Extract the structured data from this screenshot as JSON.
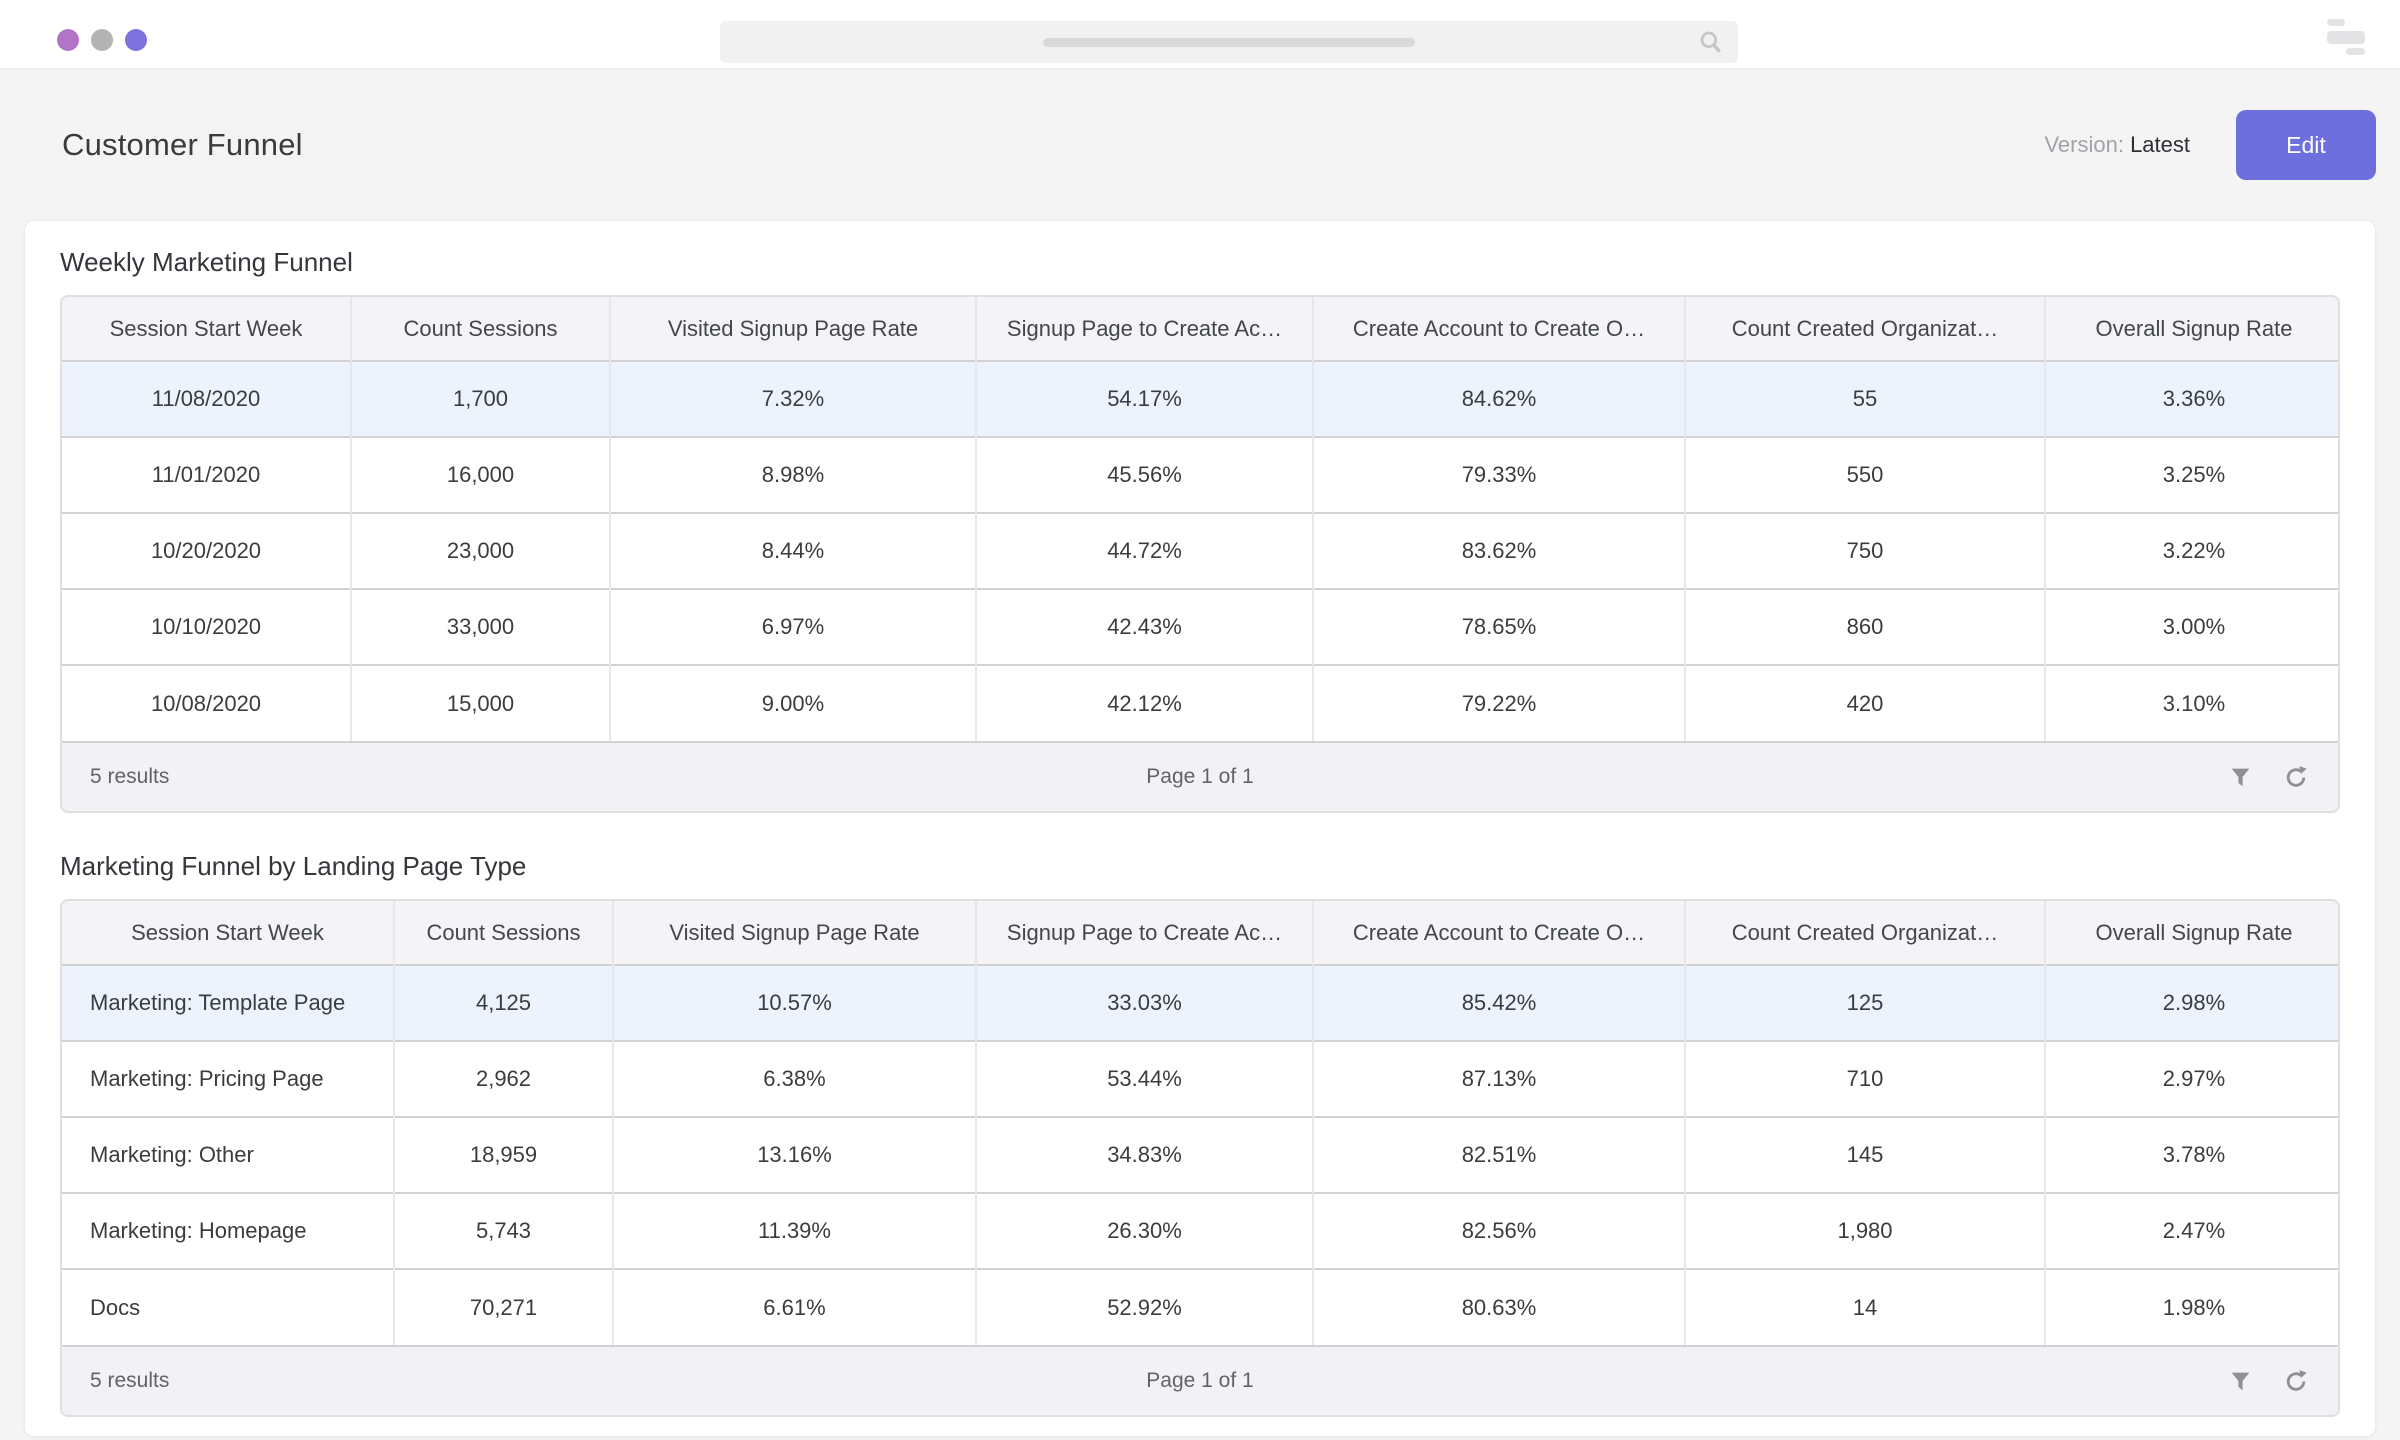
{
  "window": {
    "traffic_lights": [
      {
        "name": "dot-1",
        "color": "#b274c6"
      },
      {
        "name": "dot-2",
        "color": "#b3b3b3"
      },
      {
        "name": "dot-3",
        "color": "#7b72e0"
      }
    ],
    "search": {
      "value": "",
      "placeholder": ""
    }
  },
  "header": {
    "title": "Customer Funnel",
    "version_label": "Version:",
    "version_value": "Latest",
    "edit_label": "Edit"
  },
  "tables": [
    {
      "title": "Weekly Marketing Funnel",
      "columns": [
        "Session Start Week",
        "Count Sessions",
        "Visited Signup Page Rate",
        "Signup Page to Create Ac…",
        "Create Account to Create O…",
        "Count Created Organizat…",
        "Overall Signup Rate"
      ],
      "rows": [
        [
          "11/08/2020",
          "1,700",
          "7.32%",
          "54.17%",
          "84.62%",
          "55",
          "3.36%"
        ],
        [
          "11/01/2020",
          "16,000",
          "8.98%",
          "45.56%",
          "79.33%",
          "550",
          "3.25%"
        ],
        [
          "10/20/2020",
          "23,000",
          "8.44%",
          "44.72%",
          "83.62%",
          "750",
          "3.22%"
        ],
        [
          "10/10/2020",
          "33,000",
          "6.97%",
          "42.43%",
          "78.65%",
          "860",
          "3.00%"
        ],
        [
          "10/08/2020",
          "15,000",
          "9.00%",
          "42.12%",
          "79.22%",
          "420",
          "3.10%"
        ]
      ],
      "footer": {
        "results": "5 results",
        "page_status": "Page 1 of 1"
      }
    },
    {
      "title": "Marketing Funnel by Landing Page Type",
      "columns": [
        "Session Start Week",
        "Count Sessions",
        "Visited Signup Page Rate",
        "Signup Page to Create Ac…",
        "Create Account to Create O…",
        "Count Created Organizat…",
        "Overall Signup Rate"
      ],
      "rows": [
        [
          "Marketing: Template Page",
          "4,125",
          "10.57%",
          "33.03%",
          "85.42%",
          "125",
          "2.98%"
        ],
        [
          "Marketing: Pricing Page",
          "2,962",
          "6.38%",
          "53.44%",
          "87.13%",
          "710",
          "2.97%"
        ],
        [
          "Marketing: Other",
          "18,959",
          "13.16%",
          "34.83%",
          "82.51%",
          "145",
          "3.78%"
        ],
        [
          "Marketing: Homepage",
          "5,743",
          "11.39%",
          "26.30%",
          "82.56%",
          "1,980",
          "2.47%"
        ],
        [
          "Docs",
          "70,271",
          "6.61%",
          "52.92%",
          "80.63%",
          "14",
          "1.98%"
        ]
      ],
      "footer": {
        "results": "5 results",
        "page_status": "Page 1 of 1"
      }
    }
  ],
  "icons": {
    "search": "magnifier",
    "filter": "funnel",
    "refresh": "circular-arrow",
    "window_controls": "stacked-bars"
  },
  "colors": {
    "accent": "#6d70dc",
    "row_highlight": "#ecf3fc",
    "page_background": "#f4f4f5"
  }
}
